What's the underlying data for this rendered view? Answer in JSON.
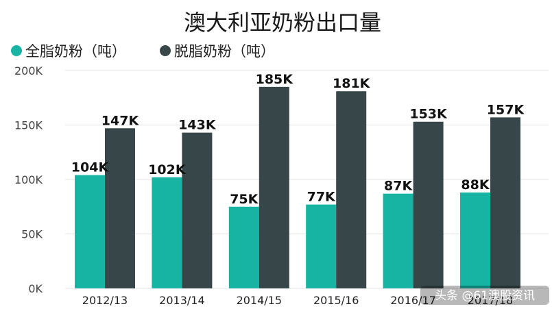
{
  "chart_data": {
    "type": "bar",
    "title": "澳大利亚奶粉出口量",
    "categories": [
      "2012/13",
      "2013/14",
      "2014/15",
      "2015/16",
      "2016/17",
      "2017/18"
    ],
    "series": [
      {
        "name": "全脂奶粉（吨）",
        "color": "#17b3a3",
        "values": [
          104000,
          102000,
          75000,
          77000,
          87000,
          88000
        ],
        "labels": [
          "104K",
          "102K",
          "75K",
          "77K",
          "87K",
          "88K"
        ]
      },
      {
        "name": "脱脂奶粉（吨）",
        "color": "#374649",
        "values": [
          147000,
          143000,
          185000,
          181000,
          153000,
          157000
        ],
        "labels": [
          "147K",
          "143K",
          "185K",
          "181K",
          "153K",
          "157K"
        ]
      }
    ],
    "ylim": [
      0,
      200000
    ],
    "yticks": [
      0,
      50000,
      100000,
      150000,
      200000
    ],
    "ytick_labels": [
      "0K",
      "50K",
      "100K",
      "150K",
      "200K"
    ],
    "grid": true,
    "legend": "top-left"
  },
  "watermark": "头条 @61澳股资讯"
}
